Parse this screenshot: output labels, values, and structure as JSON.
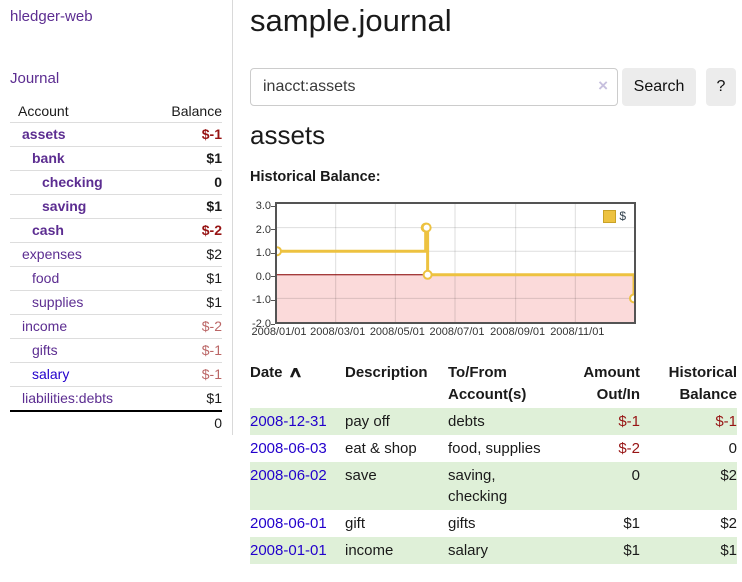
{
  "sidebar": {
    "app_title": "hledger-web",
    "journal_link": "Journal",
    "accounts_table": {
      "headers": [
        "Account",
        "Balance"
      ],
      "rows": [
        {
          "name": "assets",
          "balance": "$-1",
          "indent": 1,
          "bold": true
        },
        {
          "name": "bank",
          "balance": "$1",
          "indent": 2,
          "bold": true
        },
        {
          "name": "checking",
          "balance": "0",
          "indent": 3,
          "bold": true
        },
        {
          "name": "saving",
          "balance": "$1",
          "indent": 3,
          "bold": true
        },
        {
          "name": "cash",
          "balance": "$-2",
          "indent": 2,
          "bold": true
        },
        {
          "name": "expenses",
          "balance": "$2",
          "indent": 1,
          "bold": false
        },
        {
          "name": "food",
          "balance": "$1",
          "indent": 2,
          "bold": false
        },
        {
          "name": "supplies",
          "balance": "$1",
          "indent": 2,
          "bold": false
        },
        {
          "name": "income",
          "balance": "$-2",
          "indent": 1,
          "bold": false
        },
        {
          "name": "gifts",
          "balance": "$-1",
          "indent": 2,
          "bold": false
        },
        {
          "name": "salary",
          "balance": "$-1",
          "indent": 2,
          "bold": false,
          "blue": true
        },
        {
          "name": "liabilities:debts",
          "balance": "$1",
          "indent": 1,
          "bold": false
        }
      ],
      "total": "0"
    }
  },
  "main": {
    "title": "sample.journal",
    "search": {
      "value": "inacct:assets",
      "clear_icon": "×",
      "search_button": "Search",
      "help_button": "?"
    },
    "account_heading": "assets",
    "chart_label": "Historical Balance:"
  },
  "chart_data": {
    "type": "line",
    "step": true,
    "title": "Historical Balance",
    "series": [
      {
        "name": "$",
        "color": "#edc240",
        "points": [
          [
            "2008-01-01",
            1
          ],
          [
            "2008-06-01",
            2
          ],
          [
            "2008-06-02",
            2
          ],
          [
            "2008-06-03",
            0
          ],
          [
            "2008-12-31",
            -1
          ]
        ]
      }
    ],
    "x_range": [
      "2008-01-01",
      "2008-12-31"
    ],
    "x_ticks": [
      "2008/01/01",
      "2008/03/01",
      "2008/05/01",
      "2008/07/01",
      "2008/09/01",
      "2008/11/01"
    ],
    "y_ticks": [
      3.0,
      2.0,
      1.0,
      0.0,
      -1.0,
      -2.0
    ],
    "ylim": [
      -2,
      3
    ],
    "grid": true,
    "legend": {
      "label": "$",
      "position": "top-right"
    },
    "negative_region_color": "#fbdada",
    "zero_line_color": "#8b0000"
  },
  "register_table": {
    "sort_icon": "∧",
    "headers": [
      {
        "lines": [
          "Date"
        ],
        "sortable": true,
        "sorted": "asc"
      },
      {
        "lines": [
          "Description"
        ]
      },
      {
        "lines": [
          "To/From",
          "Account(s)"
        ]
      },
      {
        "lines": [
          "Amount",
          "Out/In"
        ],
        "align": "right"
      },
      {
        "lines": [
          "Historical",
          "Balance"
        ],
        "align": "right"
      }
    ],
    "rows": [
      {
        "date": "2008-12-31",
        "description": "pay off",
        "accounts": "debts",
        "amount": "$-1",
        "balance": "$-1"
      },
      {
        "date": "2008-06-03",
        "description": "eat & shop",
        "accounts": "food, supplies",
        "amount": "$-2",
        "balance": "0"
      },
      {
        "date": "2008-06-02",
        "description": "save",
        "accounts": "saving, checking",
        "amount": "0",
        "balance": "$2"
      },
      {
        "date": "2008-06-01",
        "description": "gift",
        "accounts": "gifts",
        "amount": "$1",
        "balance": "$2"
      },
      {
        "date": "2008-01-01",
        "description": "income",
        "accounts": "salary",
        "amount": "$1",
        "balance": "$1"
      }
    ]
  },
  "colors": {
    "link_purple": "#5c2d91",
    "link_blue": "#2200cc",
    "negative_strong": "#971414",
    "negative_soft": "#bb6666",
    "row_highlight_green": "#dff0d8",
    "series_gold": "#edc240",
    "chart_negative_pink": "#fbdada",
    "chart_zero_line": "#8b0000"
  }
}
